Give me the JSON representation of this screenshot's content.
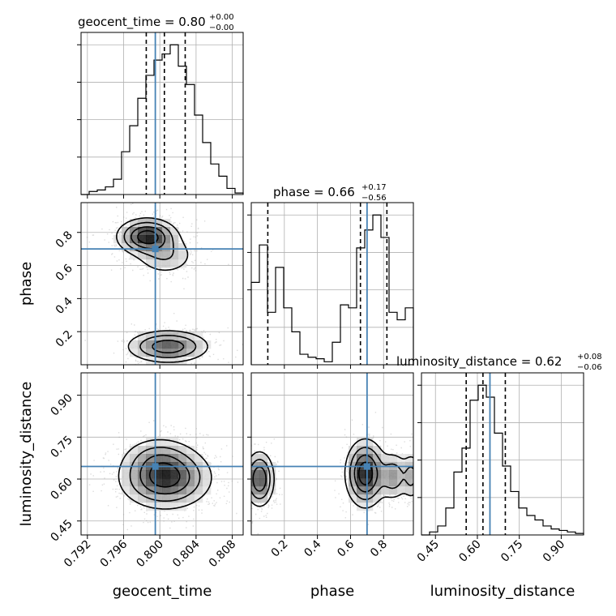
{
  "truth_color": "#4682b4",
  "chart_data": {
    "type": "corner",
    "parameters": [
      {
        "name": "geocent_time",
        "xlabel": "geocent_time",
        "range": [
          0.7913,
          0.8092
        ],
        "ticks": [
          0.792,
          0.796,
          0.8,
          0.804,
          0.808
        ],
        "tick_labels": [
          "0.792",
          "0.796",
          "0.800",
          "0.804",
          "0.808"
        ],
        "truth": 0.7995,
        "median": 0.8005,
        "quantiles": [
          0.7985,
          0.8005,
          0.8028
        ],
        "title_prefix": "geocent_time = 0.80",
        "title_sup": "+0.00",
        "title_sub": "−0.00",
        "hist_edges_start": 0.7913,
        "hist_bin_width": 0.000895,
        "hist_counts": [
          0,
          0.02,
          0.03,
          0.05,
          0.1,
          0.28,
          0.45,
          0.63,
          0.78,
          0.88,
          0.92,
          0.98,
          0.84,
          0.72,
          0.52,
          0.34,
          0.2,
          0.12,
          0.04,
          0.01
        ]
      },
      {
        "name": "phase",
        "xlabel": "phase",
        "ylabel": "phase",
        "range": [
          0.0,
          0.98
        ],
        "ticks": [
          0.2,
          0.4,
          0.6,
          0.8
        ],
        "tick_labels": [
          "0.2",
          "0.4",
          "0.6",
          "0.8"
        ],
        "truth": 0.7,
        "median": 0.66,
        "quantiles": [
          0.1,
          0.66,
          0.82
        ],
        "title_prefix": "phase = 0.66",
        "title_sup": "+0.17",
        "title_sub": "−0.56",
        "hist_edges_start": 0.0,
        "hist_bin_width": 0.049,
        "hist_counts": [
          0.55,
          0.8,
          0.35,
          0.65,
          0.38,
          0.22,
          0.07,
          0.05,
          0.04,
          0.02,
          0.15,
          0.4,
          0.38,
          0.78,
          0.9,
          1.0,
          0.85,
          0.35,
          0.3,
          0.38
        ]
      },
      {
        "name": "luminosity_distance",
        "xlabel": "luminosity_distance",
        "ylabel": "luminosity_distance",
        "range": [
          0.4,
          0.98
        ],
        "ticks": [
          0.45,
          0.6,
          0.75,
          0.9
        ],
        "tick_labels": [
          "0.45",
          "0.60",
          "0.75",
          "0.90"
        ],
        "truth": 0.645,
        "median": 0.62,
        "quantiles": [
          0.56,
          0.62,
          0.7
        ],
        "title_prefix": "luminosity_distance = 0.62",
        "title_sup": "+0.08",
        "title_sub": "−0.06",
        "hist_edges_start": 0.4,
        "hist_bin_width": 0.029,
        "hist_counts": [
          0,
          0.02,
          0.06,
          0.18,
          0.42,
          0.58,
          0.9,
          1.0,
          0.92,
          0.68,
          0.46,
          0.29,
          0.18,
          0.13,
          0.1,
          0.06,
          0.04,
          0.03,
          0.02,
          0.01
        ]
      }
    ],
    "panels_2d": [
      {
        "x": "geocent_time",
        "y": "phase",
        "modes": [
          {
            "cx": 0.7986,
            "cy": 0.775,
            "sx": 0.00165,
            "sy": 0.055,
            "weight": 0.58
          },
          {
            "cx": 0.8006,
            "cy": 0.66,
            "sx": 0.0018,
            "sy": 0.065,
            "weight": 0.18
          },
          {
            "cx": 0.8009,
            "cy": 0.11,
            "sx": 0.0023,
            "sy": 0.05,
            "weight": 0.44
          }
        ]
      },
      {
        "x": "geocent_time",
        "y": "luminosity_distance",
        "modes": [
          {
            "cx": 0.8006,
            "cy": 0.605,
            "sx": 0.0025,
            "sy": 0.055,
            "weight": 1.0
          },
          {
            "cx": 0.7998,
            "cy": 0.68,
            "sx": 0.002,
            "sy": 0.04,
            "weight": 0.25
          }
        ]
      },
      {
        "x": "phase",
        "y": "luminosity_distance",
        "modes": [
          {
            "cx": 0.05,
            "cy": 0.6,
            "sx": 0.045,
            "sy": 0.05,
            "weight": 0.8
          },
          {
            "cx": 0.69,
            "cy": 0.62,
            "sx": 0.06,
            "sy": 0.06,
            "weight": 1.0
          },
          {
            "cx": 0.86,
            "cy": 0.61,
            "sx": 0.05,
            "sy": 0.045,
            "weight": 0.45
          },
          {
            "cx": 0.97,
            "cy": 0.61,
            "sx": 0.03,
            "sy": 0.045,
            "weight": 0.35
          }
        ]
      }
    ],
    "diag_y_ticks": 4,
    "grid": true
  }
}
